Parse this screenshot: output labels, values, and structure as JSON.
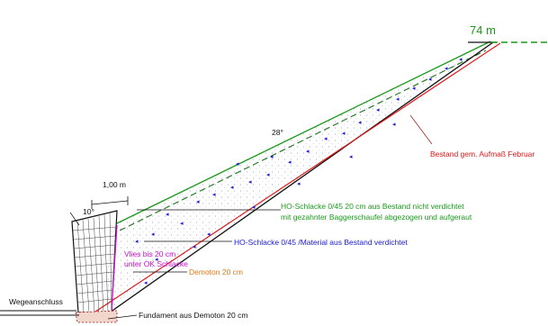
{
  "labels": {
    "elevation": "74 m",
    "slope_angle": "28°",
    "width": "1,00 m",
    "wall_angle": "10°",
    "existing_ground": "Bestand gem. Aufmaß Februar",
    "ho_top_line1": "HO-Schlacke 0/45  20 cm aus Bestand nicht verdichtet",
    "ho_top_line2": "mit gezahnter Baggerschaufel abgezogen und aufgeraut",
    "ho_compacted": "HO-Schlacke 0/45 /Material aus Bestand verdichtet",
    "fleece_line1": "Vlies bis 20 cm",
    "fleece_line2": "unter OK Schlacke",
    "clay": "Demoton 20 cm",
    "path_connection": "Wegeanschluss",
    "foundation": "Fundament aus Demoton 20 cm"
  },
  "colors": {
    "green": "#1a9a1a",
    "red": "#e01818",
    "blue": "#1a1ad0",
    "magenta": "#d010d0",
    "orange": "#e07818",
    "black": "#111111"
  }
}
